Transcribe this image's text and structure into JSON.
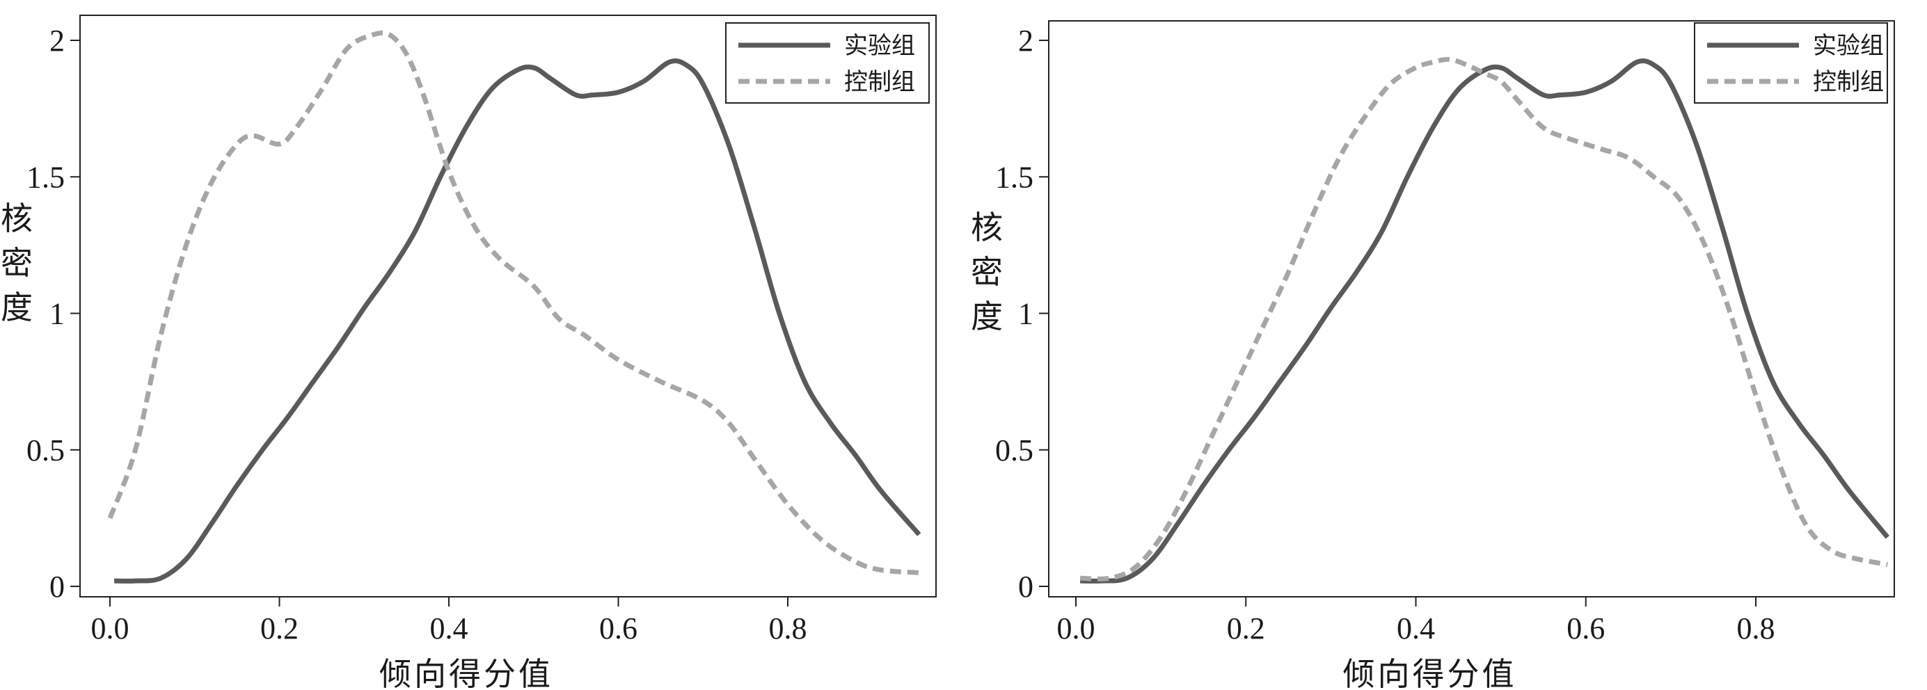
{
  "chart_data": [
    {
      "type": "line",
      "xlabel": "倾向得分值",
      "ylabel": "核密度",
      "x_ticks": [
        "0.0",
        "0.2",
        "0.4",
        "0.6",
        "0.8"
      ],
      "y_ticks": [
        "0",
        "0.5",
        "1",
        "1.5",
        "2"
      ],
      "legend": {
        "position": "top-right"
      },
      "series": [
        {
          "name": "实验组",
          "color": "#5a5a5a",
          "dash": "solid",
          "x": [
            0.005,
            0.03,
            0.06,
            0.09,
            0.12,
            0.15,
            0.18,
            0.21,
            0.24,
            0.27,
            0.3,
            0.33,
            0.36,
            0.39,
            0.42,
            0.45,
            0.48,
            0.5,
            0.52,
            0.55,
            0.57,
            0.6,
            0.63,
            0.66,
            0.68,
            0.7,
            0.73,
            0.76,
            0.79,
            0.82,
            0.85,
            0.88,
            0.91,
            0.955
          ],
          "y": [
            0.02,
            0.02,
            0.03,
            0.1,
            0.23,
            0.37,
            0.5,
            0.62,
            0.75,
            0.88,
            1.02,
            1.15,
            1.3,
            1.5,
            1.68,
            1.82,
            1.89,
            1.9,
            1.86,
            1.8,
            1.8,
            1.81,
            1.85,
            1.92,
            1.91,
            1.84,
            1.62,
            1.32,
            1.0,
            0.75,
            0.6,
            0.48,
            0.35,
            0.19
          ]
        },
        {
          "name": "控制组",
          "color": "#a6a6a6",
          "dash": "dashed",
          "x": [
            0.0,
            0.03,
            0.06,
            0.09,
            0.12,
            0.15,
            0.17,
            0.2,
            0.22,
            0.25,
            0.28,
            0.31,
            0.33,
            0.35,
            0.37,
            0.4,
            0.43,
            0.46,
            0.5,
            0.53,
            0.56,
            0.6,
            0.65,
            0.7,
            0.73,
            0.76,
            0.8,
            0.84,
            0.88,
            0.91,
            0.955
          ],
          "y": [
            0.25,
            0.5,
            0.92,
            1.25,
            1.48,
            1.62,
            1.65,
            1.62,
            1.68,
            1.82,
            1.97,
            2.02,
            2.02,
            1.95,
            1.8,
            1.52,
            1.32,
            1.2,
            1.1,
            0.98,
            0.92,
            0.83,
            0.75,
            0.68,
            0.6,
            0.47,
            0.3,
            0.17,
            0.09,
            0.06,
            0.05
          ]
        }
      ]
    },
    {
      "type": "line",
      "xlabel": "倾向得分值",
      "ylabel": "核密度",
      "x_ticks": [
        "0.0",
        "0.2",
        "0.4",
        "0.6",
        "0.8"
      ],
      "y_ticks": [
        "0",
        "0.5",
        "1",
        "1.5",
        "2"
      ],
      "legend": {
        "position": "top-right"
      },
      "series": [
        {
          "name": "实验组",
          "color": "#5a5a5a",
          "dash": "solid",
          "x": [
            0.005,
            0.03,
            0.06,
            0.09,
            0.12,
            0.15,
            0.18,
            0.21,
            0.24,
            0.27,
            0.3,
            0.33,
            0.36,
            0.39,
            0.42,
            0.45,
            0.48,
            0.5,
            0.52,
            0.55,
            0.57,
            0.6,
            0.63,
            0.66,
            0.68,
            0.7,
            0.73,
            0.76,
            0.79,
            0.82,
            0.85,
            0.88,
            0.91,
            0.955
          ],
          "y": [
            0.02,
            0.02,
            0.03,
            0.1,
            0.23,
            0.37,
            0.5,
            0.62,
            0.75,
            0.88,
            1.02,
            1.15,
            1.3,
            1.5,
            1.68,
            1.82,
            1.89,
            1.9,
            1.86,
            1.8,
            1.8,
            1.81,
            1.85,
            1.92,
            1.91,
            1.84,
            1.62,
            1.32,
            1.0,
            0.75,
            0.6,
            0.48,
            0.35,
            0.18
          ]
        },
        {
          "name": "控制组",
          "color": "#a6a6a6",
          "dash": "dashed",
          "x": [
            0.005,
            0.04,
            0.07,
            0.1,
            0.13,
            0.16,
            0.19,
            0.22,
            0.25,
            0.28,
            0.31,
            0.34,
            0.37,
            0.4,
            0.42,
            0.44,
            0.46,
            0.48,
            0.5,
            0.52,
            0.55,
            0.58,
            0.62,
            0.65,
            0.68,
            0.71,
            0.74,
            0.77,
            0.8,
            0.83,
            0.86,
            0.89,
            0.92,
            0.955
          ],
          "y": [
            0.03,
            0.03,
            0.07,
            0.18,
            0.35,
            0.55,
            0.75,
            0.95,
            1.15,
            1.37,
            1.57,
            1.72,
            1.84,
            1.9,
            1.92,
            1.93,
            1.91,
            1.88,
            1.85,
            1.78,
            1.68,
            1.64,
            1.6,
            1.57,
            1.5,
            1.42,
            1.25,
            1.0,
            0.7,
            0.43,
            0.22,
            0.13,
            0.1,
            0.08
          ]
        }
      ]
    }
  ]
}
